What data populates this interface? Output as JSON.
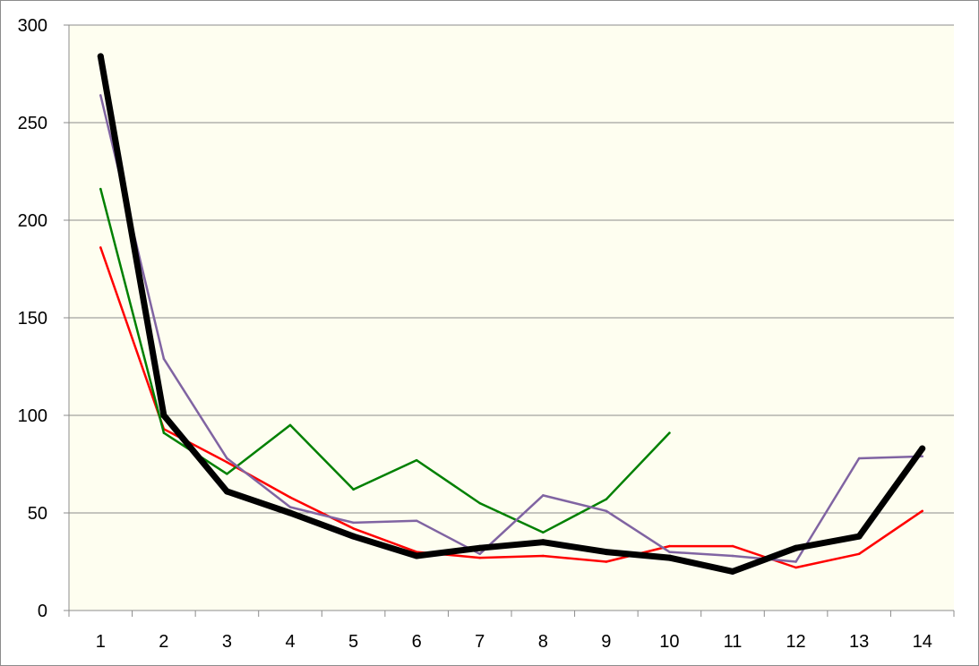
{
  "chart_data": {
    "type": "line",
    "title": "",
    "xlabel": "",
    "ylabel": "",
    "categories": [
      "1",
      "2",
      "3",
      "4",
      "5",
      "6",
      "7",
      "8",
      "9",
      "10",
      "11",
      "12",
      "13",
      "14"
    ],
    "ylim": [
      0,
      300
    ],
    "yticks": [
      0,
      50,
      100,
      150,
      200,
      250,
      300
    ],
    "grid": true,
    "legend": "none",
    "plot_background": "#fefef0",
    "gridline_color": "#8c8c8c",
    "series": [
      {
        "color": "#ff0000",
        "line_weight": "thin",
        "values": [
          186,
          93,
          76,
          58,
          42,
          30,
          27,
          28,
          25,
          33,
          33,
          22,
          29,
          51
        ]
      },
      {
        "color": "#008000",
        "line_weight": "thin",
        "values": [
          216,
          91,
          70,
          95,
          62,
          77,
          55,
          40,
          57,
          91,
          null,
          null,
          null,
          null
        ]
      },
      {
        "color": "#8064a2",
        "line_weight": "thin",
        "values": [
          264,
          129,
          78,
          53,
          45,
          46,
          29,
          59,
          51,
          30,
          28,
          25,
          78,
          79
        ]
      },
      {
        "color": "#000000",
        "line_weight": "thick",
        "values": [
          284,
          100,
          61,
          50,
          38,
          28,
          32,
          35,
          30,
          27,
          20,
          32,
          38,
          83
        ]
      }
    ]
  }
}
